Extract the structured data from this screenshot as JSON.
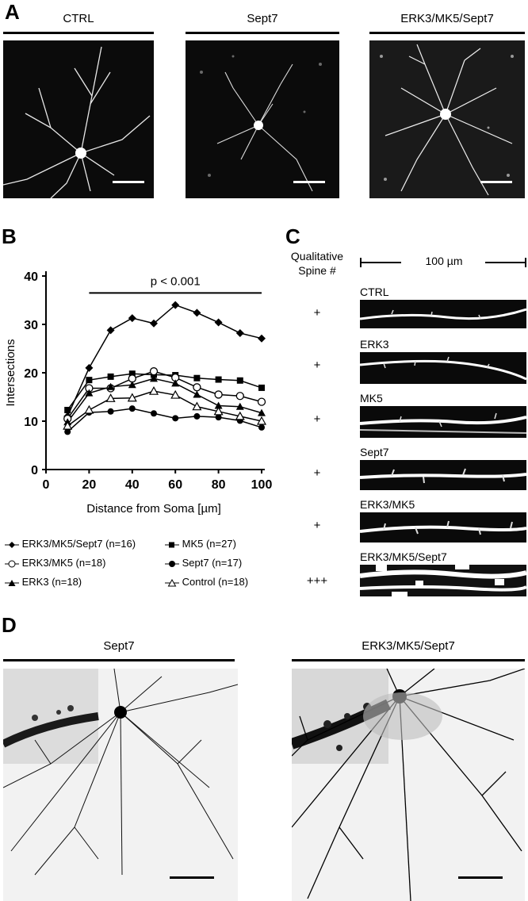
{
  "panel_a": {
    "letter": "A",
    "images": [
      {
        "caption": "CTRL"
      },
      {
        "caption": "Sept7"
      },
      {
        "caption": "ERK3/MK5/Sept7"
      }
    ]
  },
  "panel_b": {
    "letter": "B",
    "annotation": "p < 0.001"
  },
  "chart_data": {
    "type": "line",
    "xlabel": "Distance from Soma [µm]",
    "ylabel": "Intersections",
    "xlim": [
      0,
      100
    ],
    "ylim": [
      0,
      40
    ],
    "x_ticks": [
      0,
      20,
      40,
      60,
      80,
      100
    ],
    "y_ticks": [
      0,
      10,
      20,
      30,
      40
    ],
    "x": [
      10,
      20,
      30,
      40,
      50,
      60,
      70,
      80,
      90,
      100
    ],
    "annotation": "p < 0.001",
    "grid": false,
    "legend_position": "bottom",
    "series": [
      {
        "name": "ERK3/MK5/Sept7 (n=16)",
        "marker": "diamond-filled",
        "values": [
          11,
          21,
          28.8,
          31.3,
          30.2,
          34,
          32.4,
          30.4,
          28.2,
          27.1
        ]
      },
      {
        "name": "MK5 (n=27)",
        "marker": "square-filled",
        "values": [
          12.3,
          18.5,
          19.2,
          19.8,
          19.6,
          19.5,
          18.9,
          18.6,
          18.4,
          16.9
        ]
      },
      {
        "name": "ERK3/MK5 (n=18)",
        "marker": "circle-open",
        "values": [
          10.5,
          16.8,
          16.8,
          18.8,
          20.3,
          19,
          17,
          15.5,
          15.2,
          14
        ]
      },
      {
        "name": "Sept7 (n=17)",
        "marker": "circle-filled",
        "values": [
          7.8,
          11.8,
          12,
          12.6,
          11.6,
          10.6,
          11,
          10.8,
          10.1,
          8.7
        ]
      },
      {
        "name": "ERK3 (n=18)",
        "marker": "triangle-filled",
        "values": [
          9.8,
          15.8,
          17.1,
          17.5,
          18.8,
          17.8,
          15.5,
          13.2,
          13,
          11.7
        ]
      },
      {
        "name": "Control (n=18)",
        "marker": "triangle-open",
        "values": [
          9,
          12.3,
          14.7,
          14.8,
          16.2,
          15.4,
          13,
          12,
          11,
          10
        ]
      }
    ]
  },
  "panel_c": {
    "letter": "C",
    "spine_header_line1": "Qualitative",
    "spine_header_line2": "Spine #",
    "scale_label": "100 µm",
    "rows": [
      {
        "label": "CTRL",
        "score": "+"
      },
      {
        "label": "ERK3",
        "score": "+"
      },
      {
        "label": "MK5",
        "score": "+"
      },
      {
        "label": "Sept7",
        "score": "+"
      },
      {
        "label": "ERK3/MK5",
        "score": "+"
      },
      {
        "label": "ERK3/MK5/Sept7",
        "score": "+++"
      }
    ]
  },
  "panel_d": {
    "letter": "D",
    "images": [
      {
        "caption": "Sept7"
      },
      {
        "caption": "ERK3/MK5/Sept7"
      }
    ]
  }
}
